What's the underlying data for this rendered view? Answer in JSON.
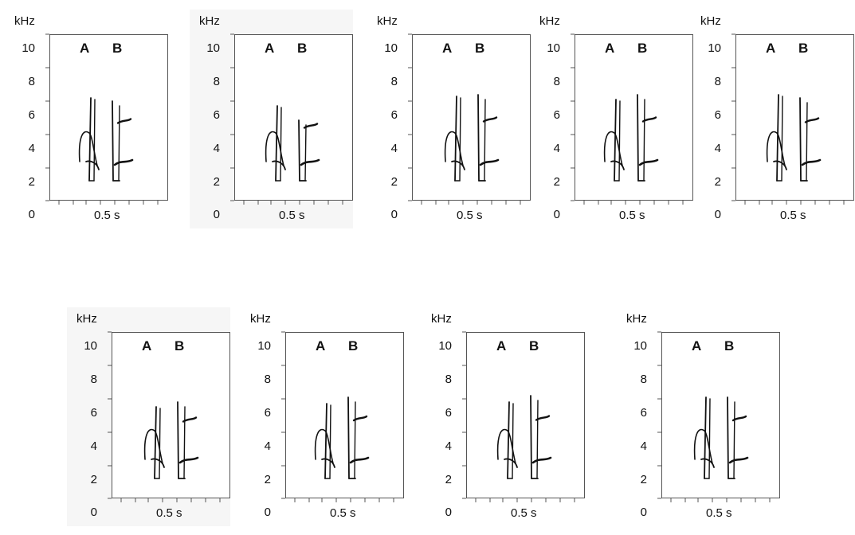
{
  "panels": [
    {
      "unit": "kHz",
      "label_a": "A",
      "label_b": "B",
      "x_label": "0.5 s",
      "y_ticks": [
        "10",
        "8",
        "6",
        "4",
        "2",
        "0"
      ],
      "variant": 0
    },
    {
      "unit": "kHz",
      "label_a": "A",
      "label_b": "B",
      "x_label": "0.5 s",
      "y_ticks": [
        "10",
        "8",
        "6",
        "4",
        "2",
        "0"
      ],
      "variant": 1
    },
    {
      "unit": "kHz",
      "label_a": "A",
      "label_b": "B",
      "x_label": "0.5 s",
      "y_ticks": [
        "10",
        "8",
        "6",
        "4",
        "2",
        "0"
      ],
      "variant": 2
    },
    {
      "unit": "kHz",
      "label_a": "A",
      "label_b": "B",
      "x_label": "0.5 s",
      "y_ticks": [
        "10",
        "8",
        "6",
        "4",
        "2",
        "0"
      ],
      "variant": 3
    },
    {
      "unit": "kHz",
      "label_a": "A",
      "label_b": "B",
      "x_label": "0.5 s",
      "y_ticks": [
        "10",
        "8",
        "6",
        "4",
        "2",
        "0"
      ],
      "variant": 4
    },
    {
      "unit": "kHz",
      "label_a": "A",
      "label_b": "B",
      "x_label": "0.5 s",
      "y_ticks": [
        "10",
        "8",
        "6",
        "4",
        "2",
        "0"
      ],
      "variant": 5
    },
    {
      "unit": "kHz",
      "label_a": "A",
      "label_b": "B",
      "x_label": "0.5 s",
      "y_ticks": [
        "10",
        "8",
        "6",
        "4",
        "2",
        "0"
      ],
      "variant": 6
    },
    {
      "unit": "kHz",
      "label_a": "A",
      "label_b": "B",
      "x_label": "0.5 s",
      "y_ticks": [
        "10",
        "8",
        "6",
        "4",
        "2",
        "0"
      ],
      "variant": 7
    },
    {
      "unit": "kHz",
      "label_a": "A",
      "label_b": "B",
      "x_label": "0.5 s",
      "y_ticks": [
        "10",
        "8",
        "6",
        "4",
        "2",
        "0"
      ],
      "variant": 8
    }
  ],
  "colors": {
    "ink": "#111111",
    "frame": "#555555",
    "background": "#ffffff"
  }
}
